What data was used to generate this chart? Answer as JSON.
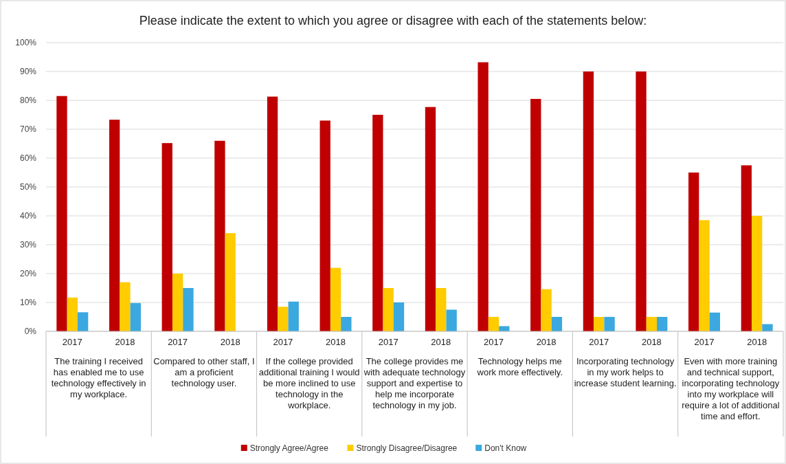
{
  "chart_data": {
    "type": "bar",
    "title": "Please indicate the extent to which you agree or disagree with each of the statements below:",
    "categories": [
      "2017",
      "2018",
      "2017",
      "2018",
      "2017",
      "2018",
      "2017",
      "2018",
      "2017",
      "2018",
      "2017",
      "2018",
      "2017",
      "2018"
    ],
    "series": [
      {
        "name": "Strongly Agree/Agree",
        "color": "#c00000",
        "values": [
          81.5,
          73.3,
          65.2,
          66,
          81.3,
          73,
          75,
          77.7,
          93.2,
          80.5,
          90,
          90,
          55,
          57.5
        ]
      },
      {
        "name": "Strongly Disagree/Disagree",
        "color": "#ffcc00",
        "values": [
          11.7,
          17,
          20,
          34,
          8.5,
          22,
          15,
          15,
          5,
          14.6,
          5,
          5,
          38.5,
          40
        ]
      },
      {
        "name": "Don't Know",
        "color": "#3ba8e0",
        "values": [
          6.6,
          9.8,
          15,
          null,
          10.3,
          5,
          10,
          7.5,
          1.8,
          5,
          5,
          5,
          6.5,
          2.5
        ]
      }
    ],
    "ylim": [
      0,
      100
    ],
    "yticks": [
      {
        "value": 0,
        "label": "0%"
      },
      {
        "value": 10,
        "label": "10%"
      },
      {
        "value": 20,
        "label": "20%"
      },
      {
        "value": 30,
        "label": "30%"
      },
      {
        "value": 40,
        "label": "40%"
      },
      {
        "value": 50,
        "label": "50%"
      },
      {
        "value": 60,
        "label": "60%"
      },
      {
        "value": 70,
        "label": "70%"
      },
      {
        "value": 80,
        "label": "80%"
      },
      {
        "value": 90,
        "label": "90%"
      },
      {
        "value": 100,
        "label": "100%"
      }
    ],
    "grid": "y",
    "legend": "bottom",
    "annotations": [
      "The training I received has enabled me to use technology effectively in my workplace.",
      "Compared to other staff, I am a proficient technology user.",
      "If the college provided additional training I would be more inclined to use technology in the workplace.",
      "The college provides me with adequate technology support and expertise to help me incorporate technology in my job.",
      "Technology helps me work more effectively.",
      "Incorporating technology in my work helps to increase student learning.",
      "Even with more training and technical support, incorporating technology into my workplace will require a lot of additional time and effort."
    ]
  }
}
